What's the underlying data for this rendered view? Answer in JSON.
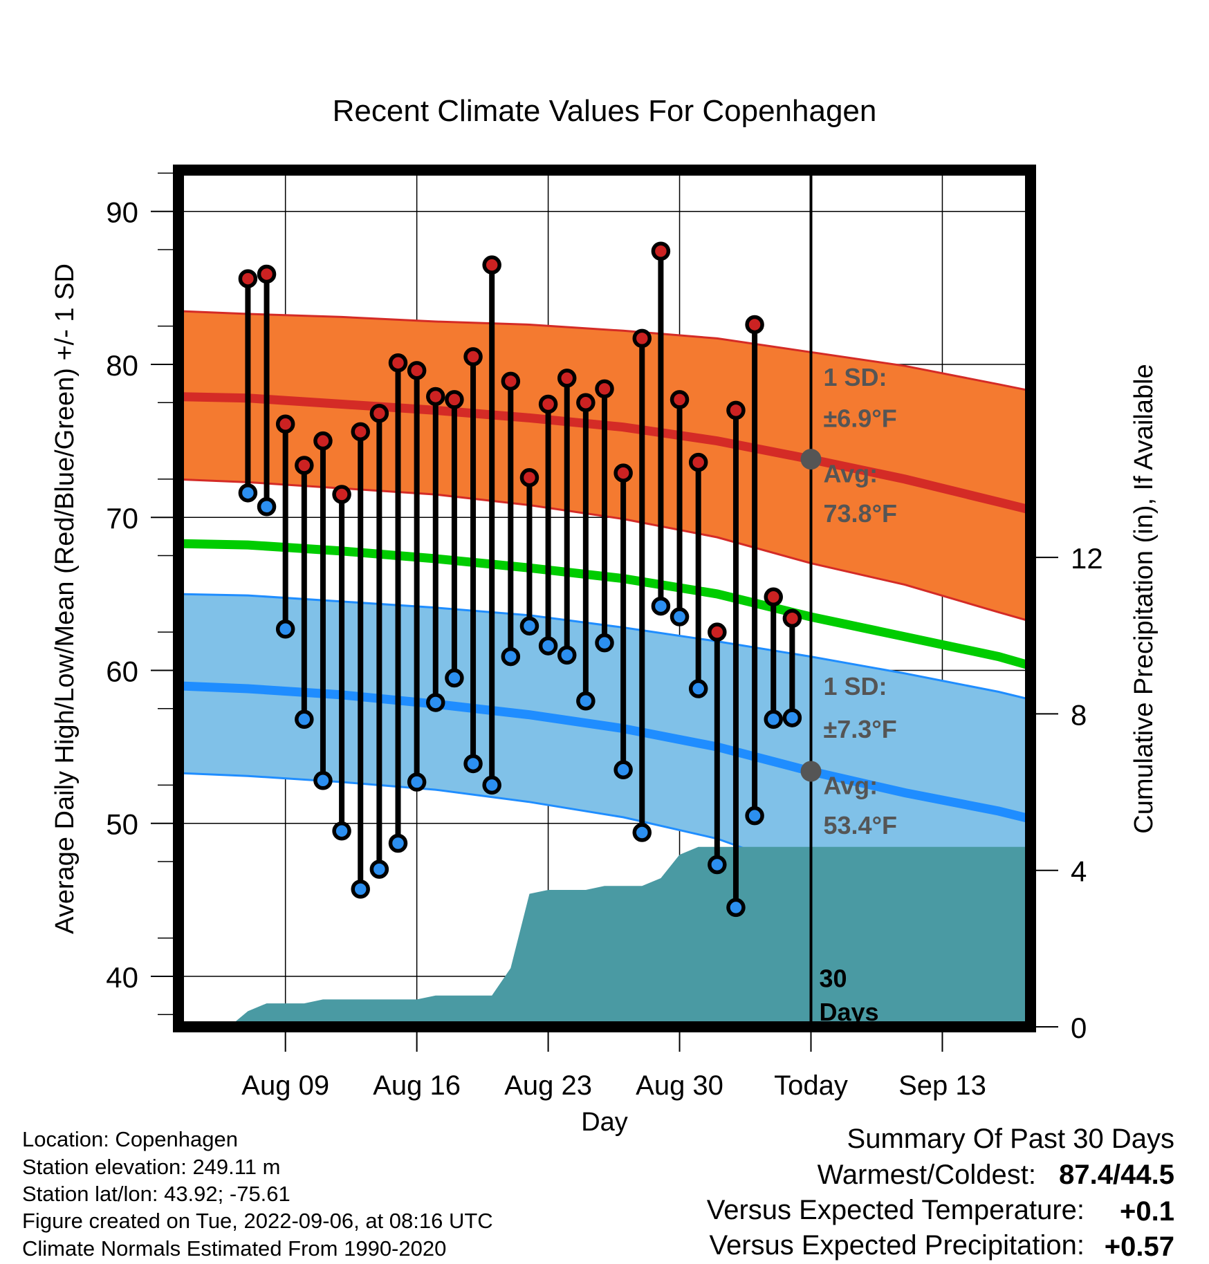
{
  "chart_data": {
    "type": "line",
    "title": "Recent Climate Values For Copenhagen",
    "xlabel": "Day",
    "ylabel": "Average Daily High/Low/Mean (Red/Blue/Green) +/- 1 SD",
    "y2label": "Cumulative Precipitation (in), If Available",
    "ylim": [
      36.7,
      92.7
    ],
    "y2lim": [
      0,
      21.9
    ],
    "xlim": [
      -33.7,
      11.7
    ],
    "x_unit": "days relative to today (Sep 06)",
    "x_ticks": [
      {
        "x": -28,
        "label": "Aug 09"
      },
      {
        "x": -21,
        "label": "Aug 16"
      },
      {
        "x": -14,
        "label": "Aug 23"
      },
      {
        "x": -7,
        "label": "Aug 30"
      },
      {
        "x": 0,
        "label": "Today"
      },
      {
        "x": 7,
        "label": "Sep 13"
      }
    ],
    "y_ticks": [
      40,
      50,
      60,
      70,
      80,
      90
    ],
    "y2_ticks": [
      0,
      4,
      8,
      12
    ],
    "grid": true,
    "highs": [
      85.6,
      85.9,
      76.1,
      73.4,
      75.0,
      71.5,
      75.6,
      76.8,
      80.1,
      79.6,
      77.9,
      77.7,
      80.5,
      86.5,
      78.9,
      72.6,
      77.4,
      79.1,
      77.5,
      78.4,
      72.9,
      81.7,
      87.4,
      77.7,
      73.6,
      62.5,
      77.0,
      82.6,
      64.8,
      63.4
    ],
    "lows": [
      71.6,
      70.7,
      62.7,
      56.8,
      52.8,
      49.5,
      45.7,
      47.0,
      48.7,
      52.7,
      57.9,
      59.5,
      53.9,
      52.5,
      60.9,
      62.9,
      61.6,
      61.0,
      58.0,
      61.8,
      53.5,
      49.4,
      64.2,
      63.5,
      58.8,
      47.3,
      44.5,
      50.5,
      56.8,
      56.9
    ],
    "normals": {
      "x": [
        -34,
        -30,
        -25,
        -20,
        -15,
        -10,
        -5,
        0,
        5,
        10,
        12
      ],
      "high_mean": [
        77.9,
        77.8,
        77.4,
        77.0,
        76.5,
        75.9,
        75.0,
        73.8,
        72.5,
        71.0,
        70.4
      ],
      "low_mean": [
        59.0,
        58.8,
        58.4,
        57.8,
        57.1,
        56.2,
        55.0,
        53.4,
        52.0,
        50.8,
        50.2
      ],
      "mean": [
        68.3,
        68.2,
        67.8,
        67.3,
        66.7,
        66.0,
        65.0,
        63.5,
        62.2,
        60.9,
        60.2
      ],
      "high_sd_upper": [
        83.5,
        83.3,
        83.1,
        82.8,
        82.6,
        82.2,
        81.7,
        80.8,
        79.9,
        78.7,
        78.2
      ],
      "high_sd_lower": [
        72.5,
        72.3,
        71.9,
        71.5,
        70.8,
        69.9,
        68.7,
        67.0,
        65.6,
        63.8,
        63.1
      ],
      "low_sd_upper": [
        65.0,
        64.9,
        64.5,
        64.1,
        63.6,
        62.8,
        61.9,
        60.9,
        59.8,
        58.6,
        58.0
      ],
      "low_sd_lower": [
        53.3,
        53.1,
        52.7,
        52.2,
        51.4,
        50.4,
        49.0,
        46.8,
        46.4,
        46.2,
        46.2
      ]
    },
    "precipitation": {
      "x": [
        -31,
        -30,
        -29,
        -28,
        -27,
        -26,
        -25,
        -24,
        -23,
        -22,
        -21,
        -20,
        -19,
        -18,
        -17,
        -16,
        -15,
        -14,
        -13,
        -12,
        -11,
        -10,
        -9,
        -8,
        -7,
        -6,
        -5,
        -4,
        -3,
        -2,
        -1,
        0,
        1,
        2,
        3,
        4,
        5,
        6,
        7,
        8,
        9,
        10,
        11,
        11.7
      ],
      "cumulative": [
        0,
        0.4,
        0.6,
        0.6,
        0.6,
        0.7,
        0.7,
        0.7,
        0.7,
        0.7,
        0.7,
        0.8,
        0.8,
        0.8,
        0.8,
        1.5,
        3.4,
        3.5,
        3.5,
        3.5,
        3.6,
        3.6,
        3.6,
        3.8,
        4.4,
        4.6,
        4.6,
        4.6,
        4.6,
        4.6,
        4.6,
        4.6,
        4.6,
        4.6,
        4.6,
        4.6,
        4.6,
        4.6,
        4.6,
        4.6,
        4.6,
        4.6,
        4.6,
        4.6
      ]
    },
    "annotations": {
      "high_sd_label": "1 SD:",
      "high_sd_value": "±6.9°F",
      "high_avg_label": "Avg:",
      "high_avg_value": "73.8°F",
      "low_sd_label": "1 SD:",
      "low_sd_value": "±7.3°F",
      "low_avg_label": "Avg:",
      "low_avg_value": "53.4°F",
      "days_label_1": "30",
      "days_label_2": "Days"
    },
    "colors": {
      "high_band": "#f47a30",
      "high_line": "#d42b26",
      "low_band": "#80c1e8",
      "low_line": "#1f8dff",
      "mean_line": "#00cc00",
      "precip": "#4a9aa3",
      "high_marker": "#cc2222",
      "low_marker": "#2c8ff0",
      "annotation": "#555555"
    }
  },
  "footer": {
    "location": "Location: Copenhagen",
    "elevation": "Station elevation: 249.11 m",
    "latlon": "Station lat/lon: 43.92; -75.61",
    "created": "Figure created on Tue, 2022-09-06, at 08:16 UTC",
    "normals": "Climate Normals Estimated From 1990-2020"
  },
  "summary": {
    "title": "Summary Of Past 30 Days",
    "warm_cold_label": "Warmest/Coldest:",
    "warm_cold_value": "87.4/44.5",
    "temp_label": "Versus Expected Temperature:",
    "temp_value": "+0.1",
    "temp_color": "#cc2222",
    "precip_label": "Versus Expected Precipitation:",
    "precip_value": "+0.57",
    "precip_color": "#22bb22"
  }
}
